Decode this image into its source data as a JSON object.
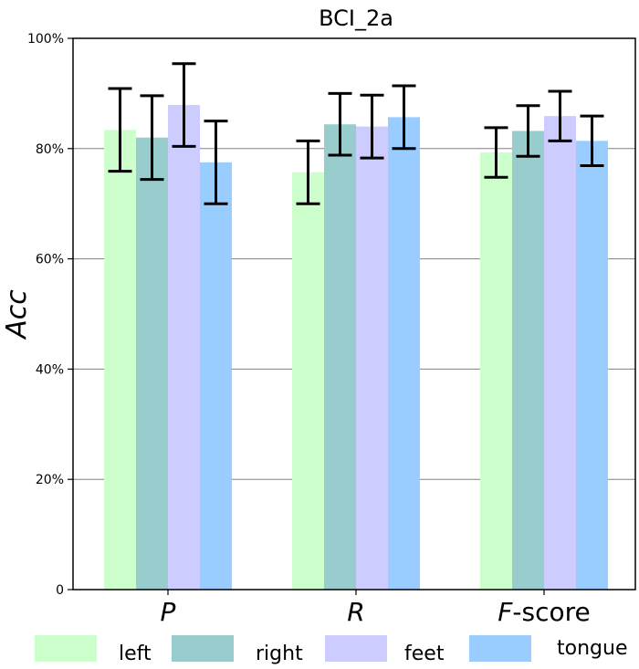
{
  "chart_data": {
    "type": "bar",
    "title": "BCI_2a",
    "xlabel": "",
    "ylabel": "Acc",
    "ylim": [
      0,
      100
    ],
    "yticks": [
      0,
      20,
      40,
      60,
      80,
      100
    ],
    "ytick_labels": [
      "0",
      "20%",
      "40%",
      "60%",
      "80%",
      "100%"
    ],
    "grid": true,
    "legend_position": "bottom",
    "categories": [
      {
        "italic": "P",
        "rest": ""
      },
      {
        "italic": "R",
        "rest": ""
      },
      {
        "italic": "F",
        "rest": "-score"
      }
    ],
    "series": [
      {
        "name": "left",
        "color": "#ccffcc",
        "values": [
          83.4,
          75.7,
          79.3
        ],
        "errors": [
          7.5,
          5.7,
          4.5
        ]
      },
      {
        "name": "right",
        "color": "#99cccc",
        "values": [
          82.0,
          84.4,
          83.2
        ],
        "errors": [
          7.6,
          5.6,
          4.6
        ]
      },
      {
        "name": "feet",
        "color": "#ccccff",
        "values": [
          87.9,
          84.0,
          85.9
        ],
        "errors": [
          7.5,
          5.7,
          4.5
        ]
      },
      {
        "name": "tongue",
        "color": "#99ccff",
        "values": [
          77.5,
          85.7,
          81.4
        ],
        "errors": [
          7.5,
          5.7,
          4.5
        ]
      }
    ]
  }
}
